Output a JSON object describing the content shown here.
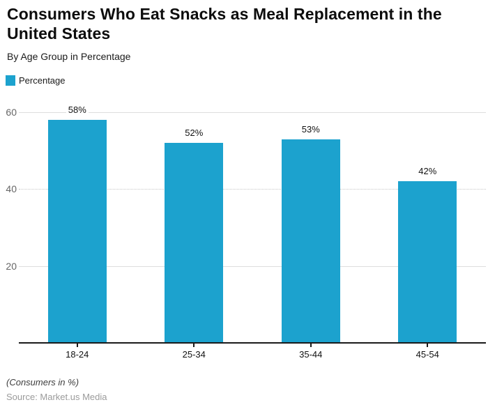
{
  "header": {
    "title": "Consumers Who Eat Snacks as Meal Replacement in the United States",
    "subtitle": "By Age Group in Percentage"
  },
  "legend": {
    "label": "Percentage",
    "swatch_color": "#1CA2CE"
  },
  "chart_data": {
    "type": "bar",
    "title": "Consumers Who Eat Snacks as Meal Replacement in the United States",
    "subtitle": "By Age Group in Percentage",
    "series_name": "Percentage",
    "categories": [
      "18-24",
      "25-34",
      "35-44",
      "45-54"
    ],
    "values": [
      58,
      52,
      53,
      42
    ],
    "value_labels": [
      "58%",
      "52%",
      "53%",
      "42%"
    ],
    "bar_color": "#1CA2CE",
    "xlabel": "",
    "ylabel": "",
    "ylim": [
      0,
      60
    ],
    "yticks": [
      20,
      40,
      60
    ],
    "grid": true,
    "legend_position": "top-left"
  },
  "footer": {
    "note": "(Consumers in %)",
    "source": "Source: Market.us Media"
  }
}
